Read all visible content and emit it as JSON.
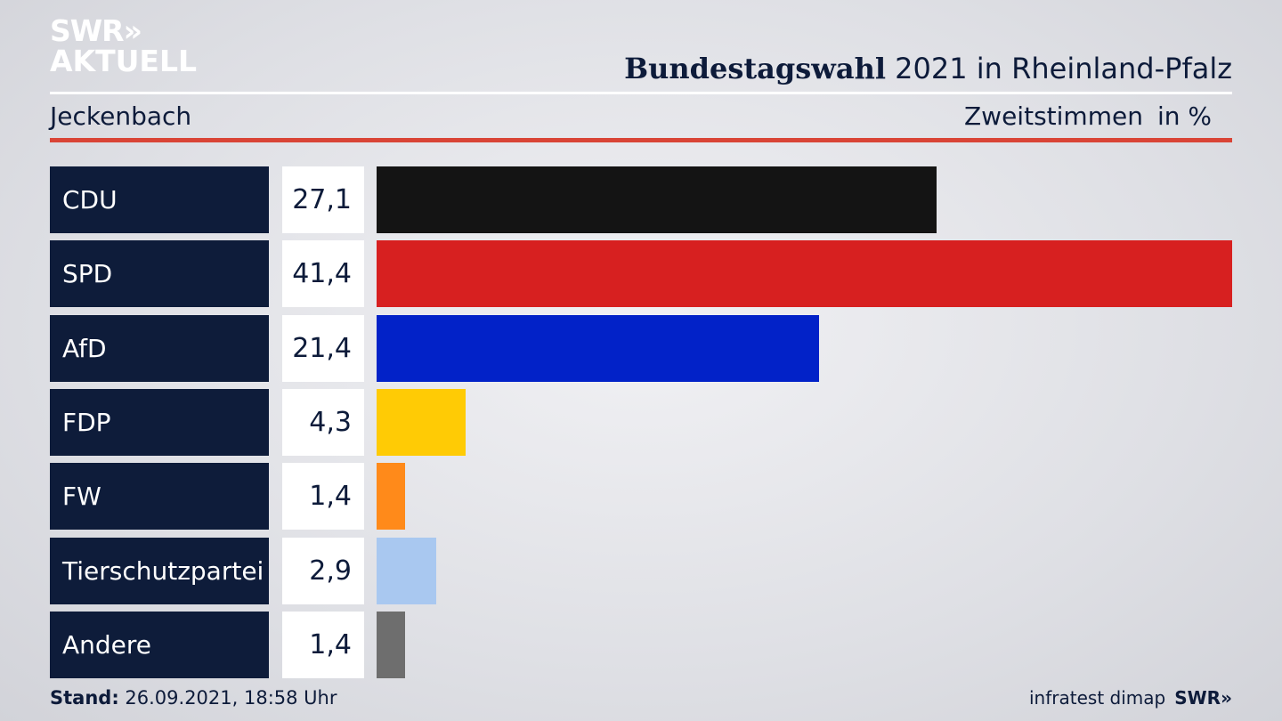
{
  "logo": {
    "line1": "SWR»",
    "line2": "AKTUELL"
  },
  "header": {
    "title_bold": "Bundestagswahl",
    "title_rest": " 2021 in Rheinland-Pfalz",
    "region": "Jeckenbach",
    "metric": "Zweitstimmen",
    "unit": "in %"
  },
  "footer": {
    "stand_label": "Stand:",
    "stand_value": " 26.09.2021, 18:58 Uhr",
    "source": "infratest dimap",
    "brand": "SWR»"
  },
  "colors": {
    "accent_red": "#d94436",
    "party_box": "#0e1c3a"
  },
  "chart_data": {
    "type": "bar",
    "orientation": "horizontal",
    "categories": [
      "CDU",
      "SPD",
      "AfD",
      "FDP",
      "FW",
      "Tierschutzpartei",
      "Andere"
    ],
    "values": [
      27.1,
      41.4,
      21.4,
      4.3,
      1.4,
      2.9,
      1.4
    ],
    "value_labels": [
      "27,1",
      "41,4",
      "21,4",
      "4,3",
      "1,4",
      "2,9",
      "1,4"
    ],
    "colors": [
      "#141414",
      "#d72020",
      "#0222c8",
      "#ffcb05",
      "#ff8a1a",
      "#a9c8f0",
      "#6e6e6e"
    ],
    "title": "Bundestagswahl 2021 in Rheinland-Pfalz",
    "xlabel": "",
    "ylabel": "",
    "xlim": [
      0,
      41.4
    ],
    "grid": false,
    "legend": "none"
  }
}
